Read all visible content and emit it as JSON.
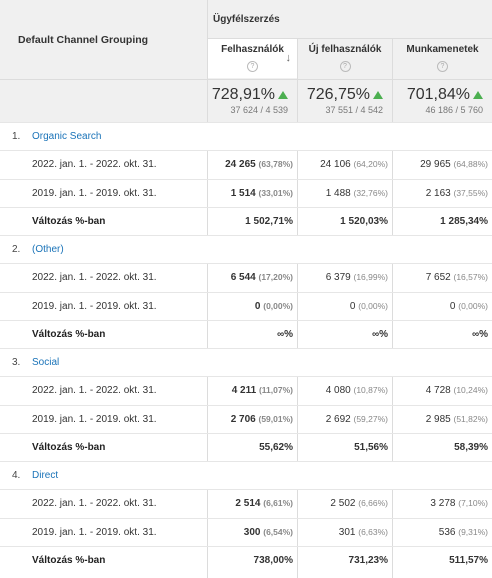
{
  "header": {
    "dimension": "Default Channel Grouping",
    "group": "Ügyfélszerzés",
    "columns": [
      {
        "label": "Felhasználók",
        "help": "?"
      },
      {
        "label": "Új felhasználók",
        "help": "?"
      },
      {
        "label": "Munkamenetek",
        "help": "?"
      }
    ],
    "sort_icon": "arrow-down-icon"
  },
  "totals": [
    {
      "pct": "728,91%",
      "ratio": "37 624 / 4 539"
    },
    {
      "pct": "726,75%",
      "ratio": "37 551 / 4 542"
    },
    {
      "pct": "701,84%",
      "ratio": "46 186 / 5 760"
    }
  ],
  "groups": [
    {
      "num": "1.",
      "channel": "Organic Search",
      "rows": [
        {
          "period": "2022. jan. 1. - 2022. okt. 31.",
          "cells": [
            [
              "24 265",
              "(63,78%)"
            ],
            [
              "24 106",
              "(64,20%)"
            ],
            [
              "29 965",
              "(64,88%)"
            ]
          ]
        },
        {
          "period": "2019. jan. 1. - 2019. okt. 31.",
          "cells": [
            [
              "1 514",
              "(33,01%)"
            ],
            [
              "1 488",
              "(32,76%)"
            ],
            [
              "2 163",
              "(37,55%)"
            ]
          ]
        }
      ],
      "change_label": "Változás %-ban",
      "change": [
        "1 502,71%",
        "1 520,03%",
        "1 285,34%"
      ]
    },
    {
      "num": "2.",
      "channel": "(Other)",
      "rows": [
        {
          "period": "2022. jan. 1. - 2022. okt. 31.",
          "cells": [
            [
              "6 544",
              "(17,20%)"
            ],
            [
              "6 379",
              "(16,99%)"
            ],
            [
              "7 652",
              "(16,57%)"
            ]
          ]
        },
        {
          "period": "2019. jan. 1. - 2019. okt. 31.",
          "cells": [
            [
              "0",
              "(0,00%)"
            ],
            [
              "0",
              "(0,00%)"
            ],
            [
              "0",
              "(0,00%)"
            ]
          ]
        }
      ],
      "change_label": "Változás %-ban",
      "change": [
        "∞%",
        "∞%",
        "∞%"
      ]
    },
    {
      "num": "3.",
      "channel": "Social",
      "rows": [
        {
          "period": "2022. jan. 1. - 2022. okt. 31.",
          "cells": [
            [
              "4 211",
              "(11,07%)"
            ],
            [
              "4 080",
              "(10,87%)"
            ],
            [
              "4 728",
              "(10,24%)"
            ]
          ]
        },
        {
          "period": "2019. jan. 1. - 2019. okt. 31.",
          "cells": [
            [
              "2 706",
              "(59,01%)"
            ],
            [
              "2 692",
              "(59,27%)"
            ],
            [
              "2 985",
              "(51,82%)"
            ]
          ]
        }
      ],
      "change_label": "Változás %-ban",
      "change": [
        "55,62%",
        "51,56%",
        "58,39%"
      ]
    },
    {
      "num": "4.",
      "channel": "Direct",
      "rows": [
        {
          "period": "2022. jan. 1. - 2022. okt. 31.",
          "cells": [
            [
              "2 514",
              "(6,61%)"
            ],
            [
              "2 502",
              "(6,66%)"
            ],
            [
              "3 278",
              "(7,10%)"
            ]
          ]
        },
        {
          "period": "2019. jan. 1. - 2019. okt. 31.",
          "cells": [
            [
              "300",
              "(6,54%)"
            ],
            [
              "301",
              "(6,63%)"
            ],
            [
              "536",
              "(9,31%)"
            ]
          ]
        }
      ],
      "change_label": "Változás %-ban",
      "change": [
        "738,00%",
        "731,23%",
        "511,57%"
      ]
    }
  ]
}
